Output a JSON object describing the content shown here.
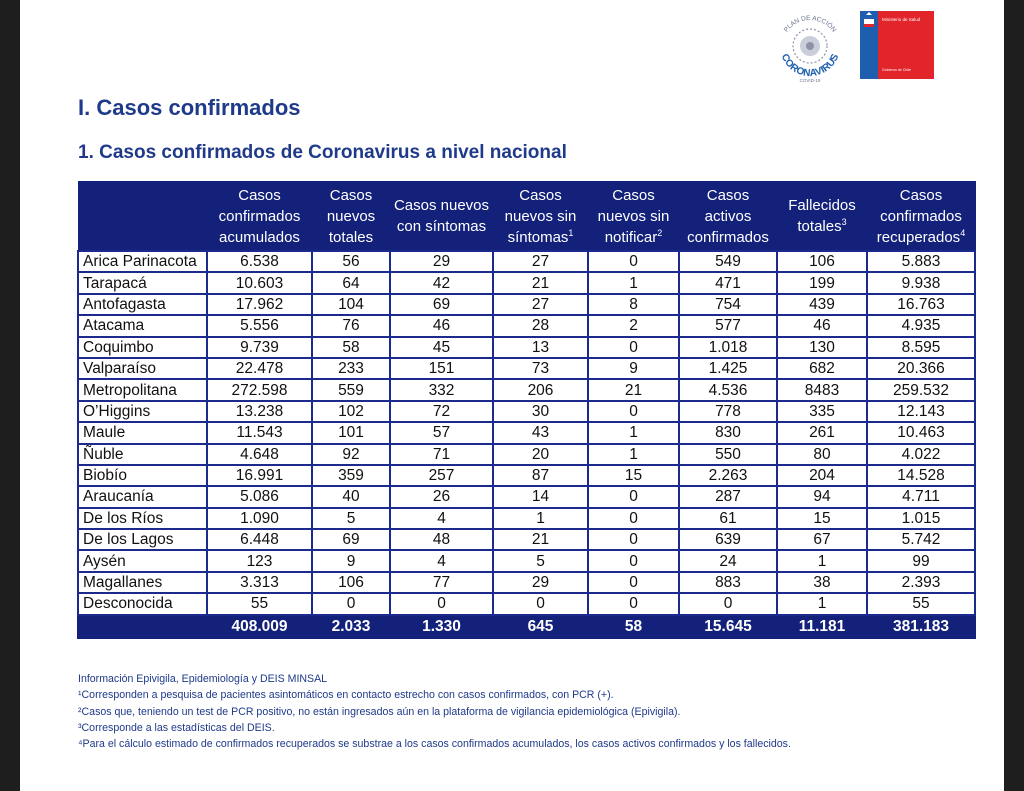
{
  "logos": {
    "plan_top_text": "PLAN DE ACCIÓN",
    "plan_main_text": "CORONAVIRUS",
    "plan_bottom_text": "COVID-19",
    "ministry_name": "Ministerio de Salud",
    "government": "Gobierno de Chile"
  },
  "section_title": "I. Casos confirmados",
  "table_title": "1. Casos confirmados de Coronavirus a nivel nacional",
  "columns": [
    {
      "text": "Casos confirmados acumulados",
      "sup": ""
    },
    {
      "text": "Casos nuevos totales",
      "sup": ""
    },
    {
      "text": "Casos nuevos con síntomas",
      "sup": ""
    },
    {
      "text": "Casos nuevos sin síntomas",
      "sup": "1"
    },
    {
      "text": "Casos nuevos sin notificar",
      "sup": "2"
    },
    {
      "text": "Casos activos confirmados",
      "sup": ""
    },
    {
      "text": "Fallecidos totales",
      "sup": "3"
    },
    {
      "text": "Casos confirmados recuperados",
      "sup": "4"
    }
  ],
  "rows": [
    {
      "region": "Arica Parinacota",
      "values": [
        "6.538",
        "56",
        "29",
        "27",
        "0",
        "549",
        "106",
        "5.883"
      ]
    },
    {
      "region": "Tarapacá",
      "values": [
        "10.603",
        "64",
        "42",
        "21",
        "1",
        "471",
        "199",
        "9.938"
      ]
    },
    {
      "region": "Antofagasta",
      "values": [
        "17.962",
        "104",
        "69",
        "27",
        "8",
        "754",
        "439",
        "16.763"
      ]
    },
    {
      "region": "Atacama",
      "values": [
        "5.556",
        "76",
        "46",
        "28",
        "2",
        "577",
        "46",
        "4.935"
      ]
    },
    {
      "region": "Coquimbo",
      "values": [
        "9.739",
        "58",
        "45",
        "13",
        "0",
        "1.018",
        "130",
        "8.595"
      ]
    },
    {
      "region": "Valparaíso",
      "values": [
        "22.478",
        "233",
        "151",
        "73",
        "9",
        "1.425",
        "682",
        "20.366"
      ]
    },
    {
      "region": "Metropolitana",
      "values": [
        "272.598",
        "559",
        "332",
        "206",
        "21",
        "4.536",
        "8483",
        "259.532"
      ]
    },
    {
      "region": "O’Higgins",
      "values": [
        "13.238",
        "102",
        "72",
        "30",
        "0",
        "778",
        "335",
        "12.143"
      ]
    },
    {
      "region": "Maule",
      "values": [
        "11.543",
        "101",
        "57",
        "43",
        "1",
        "830",
        "261",
        "10.463"
      ]
    },
    {
      "region": "Ñuble",
      "values": [
        "4.648",
        "92",
        "71",
        "20",
        "1",
        "550",
        "80",
        "4.022"
      ]
    },
    {
      "region": "Biobío",
      "values": [
        "16.991",
        "359",
        "257",
        "87",
        "15",
        "2.263",
        "204",
        "14.528"
      ]
    },
    {
      "region": "Araucanía",
      "values": [
        "5.086",
        "40",
        "26",
        "14",
        "0",
        "287",
        "94",
        "4.711"
      ]
    },
    {
      "region": "De los Ríos",
      "values": [
        "1.090",
        "5",
        "4",
        "1",
        "0",
        "61",
        "15",
        "1.015"
      ]
    },
    {
      "region": "De los Lagos",
      "values": [
        "6.448",
        "69",
        "48",
        "21",
        "0",
        "639",
        "67",
        "5.742"
      ]
    },
    {
      "region": "Aysén",
      "values": [
        "123",
        "9",
        "4",
        "5",
        "0",
        "24",
        "1",
        "99"
      ]
    },
    {
      "region": "Magallanes",
      "values": [
        "3.313",
        "106",
        "77",
        "29",
        "0",
        "883",
        "38",
        "2.393"
      ]
    },
    {
      "region": "Desconocida",
      "values": [
        "55",
        "0",
        "0",
        "0",
        "0",
        "0",
        "1",
        "55"
      ]
    }
  ],
  "totals": [
    "408.009",
    "2.033",
    "1.330",
    "645",
    "58",
    "15.645",
    "11.181",
    "381.183"
  ],
  "notes": [
    "Información Epivigila, Epidemiología y DEIS MINSAL",
    "¹Corresponden a pesquisa de pacientes asintomáticos en contacto estrecho con casos confirmados, con PCR (+).",
    "²Casos que, teniendo un test de PCR positivo, no están ingresados aún en la plataforma de vigilancia epidemiológica (Epivigila).",
    "³Corresponde a las estadísticas del DEIS.",
    "⁴Para el cálculo estimado de confirmados recuperados se substrae a los casos confirmados acumulados, los casos activos confirmados y los fallecidos."
  ],
  "colors": {
    "header_bg": "#13217a",
    "title": "#1f3a8a",
    "border": "#1b2a8c",
    "logo_blue": "#1d5fae",
    "logo_red": "#e2242b"
  }
}
